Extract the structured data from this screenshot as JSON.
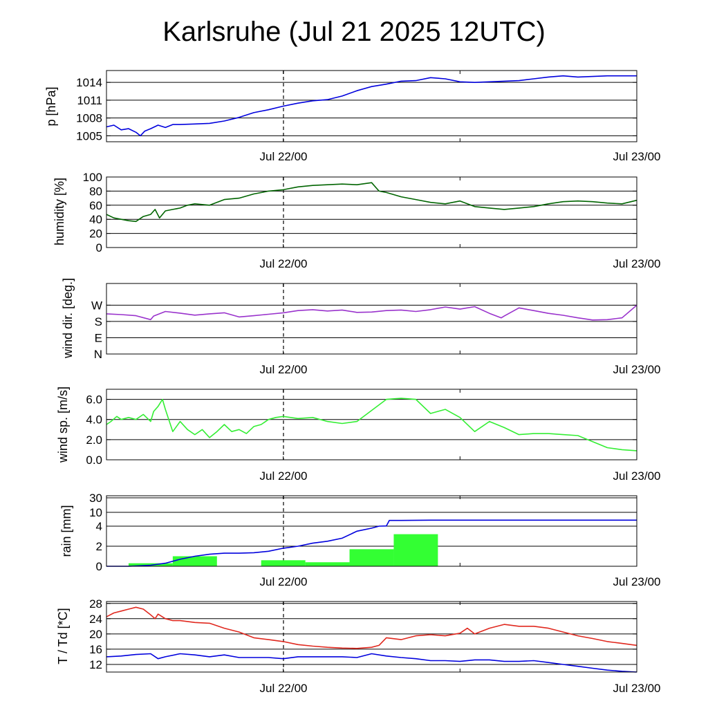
{
  "title": "Karlsruhe (Jul 21 2025 12UTC)",
  "x_tick_labels": [
    "Jul 22/00",
    "Jul 23/00"
  ],
  "colors": {
    "pressure": "#0000dd",
    "humidity": "#006400",
    "wind_dir": "#9932cc",
    "wind_speed": "#33ee33",
    "rain_bars": "#33ff33",
    "rain_cumulative": "#0000dd",
    "temperature": "#e0281e",
    "dewpoint": "#0000dd"
  },
  "chart_data": [
    {
      "type": "line",
      "id": "pressure",
      "ylabel": "p [hPa]",
      "ylim": [
        1004,
        1016
      ],
      "yticks": [
        1005,
        1008,
        1011,
        1014
      ],
      "ytick_labels": [
        "1005",
        "1008",
        "1011",
        "1014"
      ],
      "grid": "horizontal",
      "xlim_hours": [
        0,
        36
      ],
      "series": [
        {
          "x": [
            0,
            0.5,
            1,
            1.5,
            2,
            2.3,
            2.6,
            3,
            3.5,
            4,
            4.5,
            5,
            6,
            7,
            8,
            9,
            10,
            11,
            12,
            13,
            14,
            15,
            16,
            17,
            18,
            19,
            20,
            21,
            22,
            23,
            24,
            25,
            26,
            27,
            28,
            29,
            30,
            31,
            32,
            33,
            34,
            35,
            36
          ],
          "y": [
            1006.5,
            1006.8,
            1006,
            1006.2,
            1005.6,
            1005.0,
            1005.8,
            1006.2,
            1006.8,
            1006.4,
            1006.9,
            1006.9,
            1007.0,
            1007.1,
            1007.5,
            1008.1,
            1008.9,
            1009.4,
            1010.0,
            1010.5,
            1010.9,
            1011.1,
            1011.7,
            1012.6,
            1013.3,
            1013.7,
            1014.2,
            1014.3,
            1014.8,
            1014.6,
            1014.1,
            1014.0,
            1014.1,
            1014.2,
            1014.3,
            1014.6,
            1014.9,
            1015.1,
            1014.9,
            1015.0,
            1015.1,
            1015.1,
            1015.1
          ]
        }
      ]
    },
    {
      "type": "line",
      "id": "humidity",
      "ylabel": "humidity [%]",
      "ylim": [
        0,
        100
      ],
      "yticks": [
        0,
        20,
        40,
        60,
        80,
        100
      ],
      "ytick_labels": [
        "0",
        "20",
        "40",
        "60",
        "80",
        "100"
      ],
      "grid": "horizontal",
      "xlim_hours": [
        0,
        36
      ],
      "series": [
        {
          "x": [
            0,
            0.5,
            1,
            1.5,
            2,
            2.5,
            3,
            3.3,
            3.6,
            4,
            4.5,
            5,
            5.5,
            6,
            7,
            8,
            9,
            10,
            11,
            12,
            13,
            14,
            15,
            16,
            17,
            18,
            18.5,
            19,
            19.5,
            20,
            21,
            22,
            23,
            24,
            25,
            26,
            27,
            28,
            29,
            30,
            31,
            32,
            33,
            34,
            35,
            36
          ],
          "y": [
            47,
            42,
            40,
            38,
            37,
            44,
            47,
            54,
            42,
            52,
            54,
            56,
            60,
            62,
            60,
            68,
            70,
            76,
            80,
            82,
            86,
            88,
            89,
            90,
            89,
            92,
            80,
            78,
            75,
            72,
            68,
            64,
            62,
            66,
            58,
            56,
            54,
            56,
            58,
            62,
            65,
            66,
            65,
            63,
            62,
            67
          ]
        }
      ]
    },
    {
      "type": "line",
      "id": "wind_dir",
      "ylabel": "wind dir. [deg.]",
      "ylim": [
        0,
        390
      ],
      "yticks": [
        0,
        90,
        180,
        270
      ],
      "ytick_labels": [
        "N",
        "E",
        "S",
        "W"
      ],
      "grid": "horizontal",
      "xlim_hours": [
        0,
        36
      ],
      "series": [
        {
          "x": [
            0,
            1,
            2,
            3,
            3.2,
            4,
            5,
            6,
            7,
            8,
            9,
            10,
            11,
            12,
            13,
            14,
            15,
            16,
            17,
            18,
            19,
            20,
            21,
            22,
            23,
            24,
            25,
            26,
            26.8,
            27,
            28,
            29,
            30,
            31,
            32,
            33,
            34,
            35,
            36
          ],
          "y": [
            222,
            218,
            212,
            190,
            210,
            235,
            226,
            215,
            222,
            228,
            205,
            212,
            220,
            228,
            240,
            245,
            238,
            243,
            230,
            232,
            240,
            243,
            235,
            245,
            260,
            248,
            262,
            225,
            200,
            210,
            255,
            240,
            225,
            214,
            200,
            188,
            190,
            200,
            270
          ]
        }
      ]
    },
    {
      "type": "line",
      "id": "wind_speed",
      "ylabel": "wind sp. [m/s]",
      "ylim": [
        0,
        7
      ],
      "yticks": [
        0,
        2,
        4,
        6
      ],
      "ytick_labels": [
        "0.0",
        "2.0",
        "4.0",
        "6.0"
      ],
      "grid": "horizontal",
      "xlim_hours": [
        0,
        36
      ],
      "series": [
        {
          "x": [
            0,
            0.3,
            0.7,
            1,
            1.5,
            2,
            2.5,
            3,
            3.2,
            3.5,
            3.8,
            4,
            4.5,
            5,
            5.5,
            6,
            6.5,
            7,
            7.5,
            8,
            8.5,
            9,
            9.5,
            10,
            10.5,
            11,
            11.5,
            12,
            13,
            14,
            15,
            16,
            17,
            18,
            19,
            20,
            21,
            22,
            23,
            24,
            25,
            26,
            27,
            28,
            29,
            30,
            31,
            32,
            33,
            34,
            35,
            36
          ],
          "y": [
            3.5,
            3.8,
            4.3,
            4.0,
            4.2,
            4.0,
            4.5,
            3.8,
            4.8,
            5.3,
            6.0,
            5.0,
            2.8,
            3.8,
            3.0,
            2.5,
            3.0,
            2.2,
            2.8,
            3.5,
            2.8,
            3.0,
            2.6,
            3.3,
            3.5,
            4.0,
            4.2,
            4.3,
            4.1,
            4.2,
            3.8,
            3.6,
            3.8,
            4.9,
            6.0,
            6.1,
            6.0,
            4.6,
            5.0,
            4.2,
            2.8,
            3.8,
            3.2,
            2.5,
            2.6,
            2.6,
            2.5,
            2.4,
            1.8,
            1.2,
            1.0,
            0.9
          ]
        }
      ]
    },
    {
      "type": "bar",
      "id": "rain",
      "ylabel": "rain [mm]",
      "scale": "piecewise",
      "ytick_labels": [
        "0",
        "2",
        "4",
        "10",
        "30"
      ],
      "yticks": [
        0,
        2,
        4,
        10,
        30
      ],
      "grid": "horizontal",
      "xlim_hours": [
        0,
        36
      ],
      "bars": [
        {
          "x_start": 1.5,
          "x_end": 4.5,
          "value": 0.3
        },
        {
          "x_start": 4.5,
          "x_end": 7.5,
          "value": 1.0
        },
        {
          "x_start": 10.5,
          "x_end": 13.5,
          "value": 0.6
        },
        {
          "x_start": 13.5,
          "x_end": 16.5,
          "value": 0.4
        },
        {
          "x_start": 16.5,
          "x_end": 19.5,
          "value": 1.7
        },
        {
          "x_start": 19.5,
          "x_end": 22.5,
          "value": 3.2
        }
      ],
      "cumulative": {
        "x": [
          0,
          1.5,
          3,
          4,
          5,
          6,
          7,
          8,
          9,
          10,
          11,
          12,
          13,
          14,
          15,
          16,
          17,
          18,
          18.5,
          19,
          19.2,
          20,
          22,
          24,
          26,
          28,
          30,
          32,
          34,
          36
        ],
        "y": [
          0,
          0,
          0.1,
          0.3,
          0.7,
          1.0,
          1.2,
          1.3,
          1.3,
          1.35,
          1.5,
          1.8,
          2.0,
          2.3,
          2.5,
          2.8,
          3.5,
          3.8,
          4.0,
          4.1,
          6.5,
          6.5,
          6.6,
          6.6,
          6.6,
          6.6,
          6.6,
          6.6,
          6.6,
          6.6
        ]
      }
    },
    {
      "type": "line",
      "id": "temperature",
      "ylabel": "T / Td [*C]",
      "ylim": [
        10,
        28.5
      ],
      "yticks": [
        12,
        16,
        20,
        24,
        28
      ],
      "ytick_labels": [
        "12",
        "16",
        "20",
        "24",
        "28"
      ],
      "grid": "horizontal",
      "xlim_hours": [
        0,
        36
      ],
      "series": [
        {
          "x": [
            0,
            0.5,
            1,
            1.5,
            2,
            2.5,
            3,
            3.3,
            3.5,
            4,
            4.5,
            5,
            6,
            7,
            8,
            9,
            10,
            11,
            12,
            13,
            14,
            15,
            16,
            17,
            18,
            18.5,
            19,
            20,
            21,
            22,
            23,
            24,
            24.5,
            25,
            26,
            27,
            28,
            29,
            30,
            31,
            32,
            33,
            34,
            35,
            36
          ],
          "y": [
            24.5,
            25.5,
            26,
            26.5,
            27,
            26.5,
            25,
            24,
            25.2,
            24,
            23.5,
            23.5,
            23,
            22.8,
            21.5,
            20.5,
            19,
            18.5,
            18,
            17.2,
            16.8,
            16.5,
            16.3,
            16.2,
            16.5,
            17,
            19,
            18.5,
            19.5,
            19.8,
            19.5,
            20.2,
            21.5,
            20,
            21.5,
            22.5,
            22,
            22,
            21.5,
            20.5,
            19.5,
            18.8,
            18,
            17.5,
            17
          ]
        },
        {
          "x": [
            0,
            1,
            2,
            3,
            3.5,
            4,
            5,
            6,
            7,
            8,
            9,
            10,
            11,
            12,
            13,
            14,
            15,
            16,
            17,
            18,
            19,
            20,
            21,
            22,
            23,
            24,
            25,
            26,
            27,
            28,
            29,
            30,
            31,
            32,
            33,
            34,
            35,
            36
          ],
          "y": [
            14.0,
            14.2,
            14.6,
            14.8,
            13.5,
            14.0,
            14.8,
            14.5,
            14.0,
            14.5,
            13.8,
            13.8,
            13.8,
            13.5,
            14.0,
            14.0,
            14.0,
            14.0,
            13.8,
            14.8,
            14.2,
            13.8,
            13.5,
            13.0,
            13.0,
            12.8,
            13.2,
            13.2,
            12.8,
            12.8,
            13.0,
            12.5,
            12.0,
            11.5,
            11.0,
            10.5,
            10.2,
            10.0
          ]
        }
      ]
    }
  ]
}
